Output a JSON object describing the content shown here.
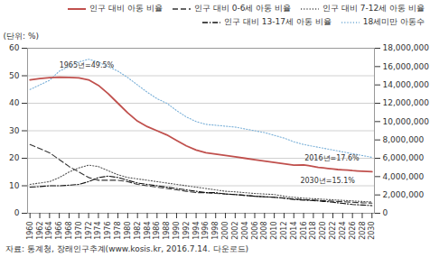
{
  "chart_data": {
    "type": "line",
    "ylabel": "(단위: %)",
    "caption": "자료: 통계청, 장래인구추계(www.kosis.kr, 2016.7.14. 다운로드)",
    "x": [
      1960,
      1962,
      1964,
      1966,
      1968,
      1970,
      1972,
      1974,
      1976,
      1978,
      1980,
      1982,
      1984,
      1986,
      1988,
      1990,
      1992,
      1994,
      1996,
      1998,
      2000,
      2002,
      2004,
      2006,
      2008,
      2010,
      2012,
      2014,
      2016,
      2017,
      2018,
      2019,
      2020,
      2021,
      2022,
      2023,
      2024,
      2025,
      2026,
      2027,
      2028,
      2029,
      2030
    ],
    "xlim": [
      1959.5,
      2030.5
    ],
    "xticks": [
      1960,
      1962,
      1964,
      1966,
      1968,
      1970,
      1972,
      1974,
      1976,
      1978,
      1980,
      1982,
      1984,
      1986,
      1988,
      1990,
      1992,
      1994,
      1996,
      1998,
      2000,
      2002,
      2004,
      2006,
      2008,
      2010,
      2012,
      2014,
      2016,
      2018,
      2020,
      2022,
      2024,
      2026,
      2028,
      2030
    ],
    "ylim": [
      0,
      60
    ],
    "yticks": [
      0,
      10,
      20,
      30,
      40,
      50,
      60
    ],
    "y2lim": [
      0,
      18000000
    ],
    "y2ticks": [
      0,
      {
        "value": 2000000,
        "label": "2,000,000"
      },
      {
        "value": 4000000,
        "label": "4,000,000"
      },
      {
        "value": 6000000,
        "label": "6,000,000"
      },
      {
        "value": 8000000,
        "label": "8,000,000"
      },
      {
        "value": 10000000,
        "label": "10,000,000"
      },
      {
        "value": 12000000,
        "label": "12,000,000"
      },
      {
        "value": 14000000,
        "label": "14,000,000"
      },
      {
        "value": 16000000,
        "label": "16,000,000"
      },
      {
        "value": 18000000,
        "label": "18,000,000"
      }
    ],
    "grid": "y",
    "legend": "upper right",
    "series": [
      {
        "name": "인구 대비 아동 비율",
        "color": "#c0504d",
        "line_style": "solid",
        "values": [
          48.5,
          49.0,
          49.3,
          49.5,
          49.4,
          49.2,
          48.5,
          46.5,
          43.5,
          40.0,
          36.5,
          33.5,
          31.5,
          30.0,
          28.5,
          26.5,
          24.5,
          23.0,
          22.0,
          21.5,
          21.0,
          20.5,
          20.0,
          19.5,
          19.0,
          18.5,
          18.0,
          17.5,
          17.6,
          17.3,
          17.0,
          16.7,
          16.5,
          16.3,
          16.1,
          15.9,
          15.8,
          15.7,
          15.5,
          15.4,
          15.3,
          15.2,
          15.1
        ]
      },
      {
        "name": "인구 대비 0-6세 아동 비율",
        "color": "#333333",
        "line_style": "dashed",
        "values": [
          25.0,
          23.5,
          22.0,
          19.5,
          17.0,
          15.0,
          13.0,
          12.0,
          12.0,
          12.0,
          11.5,
          10.5,
          10.0,
          9.5,
          9.0,
          8.5,
          8.0,
          7.5,
          7.5,
          7.2,
          7.0,
          6.8,
          6.5,
          6.2,
          6.0,
          5.8,
          5.5,
          5.2,
          5.0,
          4.9,
          4.8,
          4.7,
          4.6,
          4.5,
          4.4,
          4.3,
          4.2,
          4.1,
          4.0,
          3.9,
          3.8,
          3.75,
          3.7
        ]
      },
      {
        "name": "인구 대비 7-12세 아동 비율",
        "color": "#555555",
        "line_style": "dotted",
        "values": [
          10.5,
          11.0,
          11.5,
          13.0,
          15.0,
          16.5,
          17.5,
          17.0,
          15.5,
          14.0,
          13.0,
          12.5,
          12.0,
          11.5,
          11.0,
          10.5,
          10.0,
          9.5,
          9.0,
          8.5,
          8.0,
          7.8,
          7.5,
          7.2,
          7.0,
          6.8,
          6.2,
          5.8,
          5.5,
          5.4,
          5.3,
          5.2,
          5.1,
          5.0,
          4.9,
          4.8,
          4.7,
          4.6,
          4.5,
          4.4,
          4.3,
          4.2,
          4.1
        ]
      },
      {
        "name": "인구 대비 13-17세 아동 비율",
        "color": "#111111",
        "line_style": "dashdot",
        "values": [
          9.5,
          9.7,
          10.0,
          10.0,
          10.2,
          10.5,
          11.5,
          13.0,
          13.5,
          13.0,
          12.0,
          11.0,
          10.5,
          10.0,
          9.5,
          9.0,
          8.5,
          8.0,
          7.5,
          7.5,
          7.0,
          6.8,
          6.5,
          6.2,
          6.0,
          5.8,
          5.5,
          5.0,
          4.8,
          4.7,
          4.6,
          4.5,
          4.3,
          4.2,
          4.0,
          3.8,
          3.6,
          3.4,
          3.2,
          3.1,
          3.0,
          2.9,
          2.8
        ]
      },
      {
        "name": "18세미만 아동수",
        "color": "#7ab0d8",
        "line_style": "dotted",
        "axis": "y2",
        "values": [
          13500000,
          14000000,
          14500000,
          15500000,
          16000000,
          16500000,
          16800000,
          16500000,
          16000000,
          15500000,
          14800000,
          14000000,
          13200000,
          12500000,
          12000000,
          11200000,
          10500000,
          10000000,
          9700000,
          9600000,
          9500000,
          9400000,
          9200000,
          9000000,
          8800000,
          8500000,
          8200000,
          7800000,
          7500000,
          7400000,
          7300000,
          7200000,
          7100000,
          7000000,
          6900000,
          6800000,
          6700000,
          6600000,
          6500000,
          6400000,
          6300000,
          6200000,
          6100000
        ]
      }
    ],
    "annotations": [
      {
        "text": "1965년=49.5%",
        "x": 1966,
        "y": 53.0
      },
      {
        "text": "2016년=17.6%",
        "x": 2016.2,
        "y": 19.2
      },
      {
        "text": "2030년=15.1%",
        "x": 2026.5,
        "y": 13.0
      }
    ]
  }
}
